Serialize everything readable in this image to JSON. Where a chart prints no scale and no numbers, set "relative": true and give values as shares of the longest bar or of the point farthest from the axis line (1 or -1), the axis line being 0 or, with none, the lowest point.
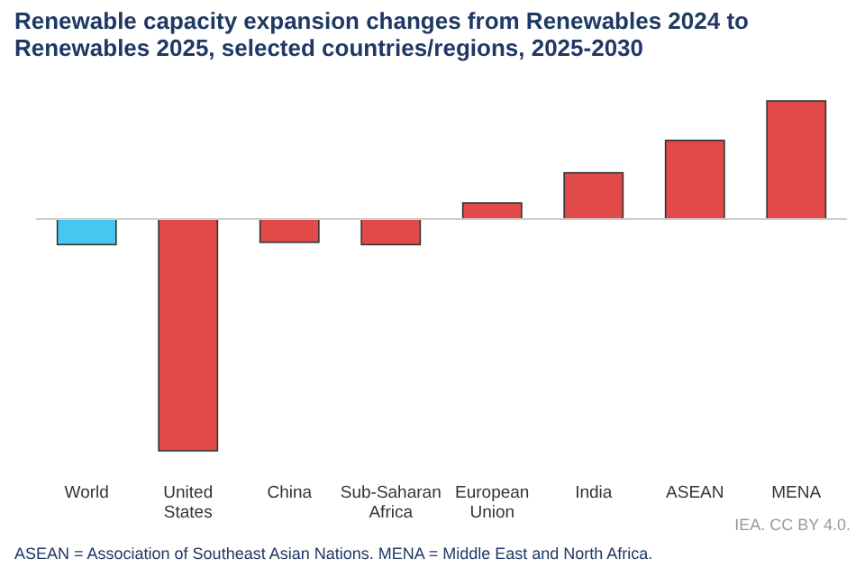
{
  "chart_data": {
    "type": "bar",
    "title": "Renewable capacity expansion changes from Renewables 2024 to Renewables 2025, selected countries/regions, 2025-2030",
    "categories": [
      "World",
      "United States",
      "China",
      "Sub-Saharan Africa",
      "European Union",
      "India",
      "ASEAN",
      "MENA"
    ],
    "values": [
      -0.11,
      -1,
      -0.1,
      -0.11,
      0.07,
      0.2,
      0.34,
      0.51
    ],
    "colors": [
      "#45c8f0",
      "#e24a4a",
      "#e24a4a",
      "#e24a4a",
      "#e24a4a",
      "#e24a4a",
      "#e24a4a",
      "#e24a4a"
    ],
    "relative": true,
    "annotations": [
      "ASEAN = Association of Southeast Asian Nations. MENA = Middle East and North Africa.",
      "IEA. CC BY 4.0."
    ]
  }
}
